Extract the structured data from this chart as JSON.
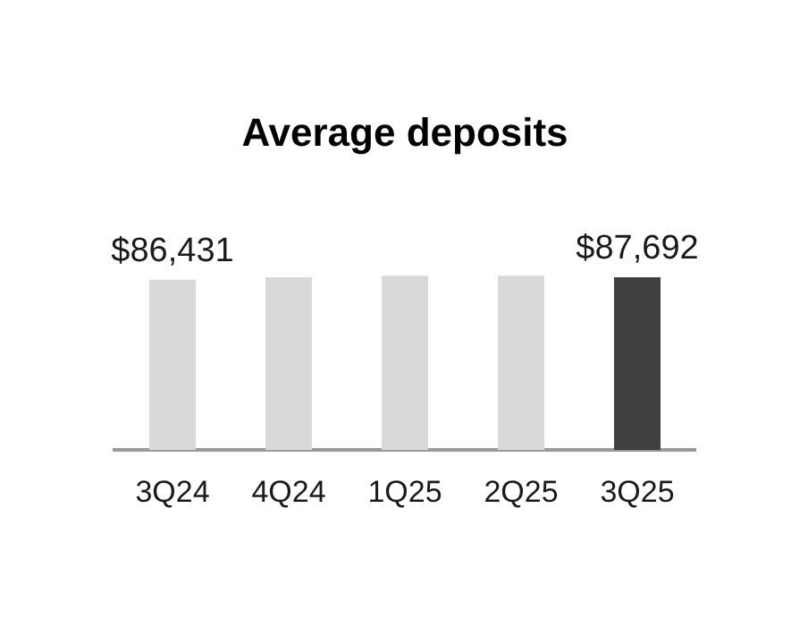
{
  "chart_data": {
    "type": "bar",
    "title": "Average deposits",
    "categories": [
      "3Q24",
      "4Q24",
      "1Q25",
      "2Q25",
      "3Q25"
    ],
    "values": [
      86431,
      87700,
      88400,
      88400,
      87692
    ],
    "value_labels": [
      "$86,431",
      null,
      null,
      null,
      "$87,692"
    ],
    "colors": [
      "#d9d9d9",
      "#d9d9d9",
      "#d9d9d9",
      "#d9d9d9",
      "#404040"
    ],
    "tick_labels": "x",
    "grid": false,
    "legend": false
  }
}
